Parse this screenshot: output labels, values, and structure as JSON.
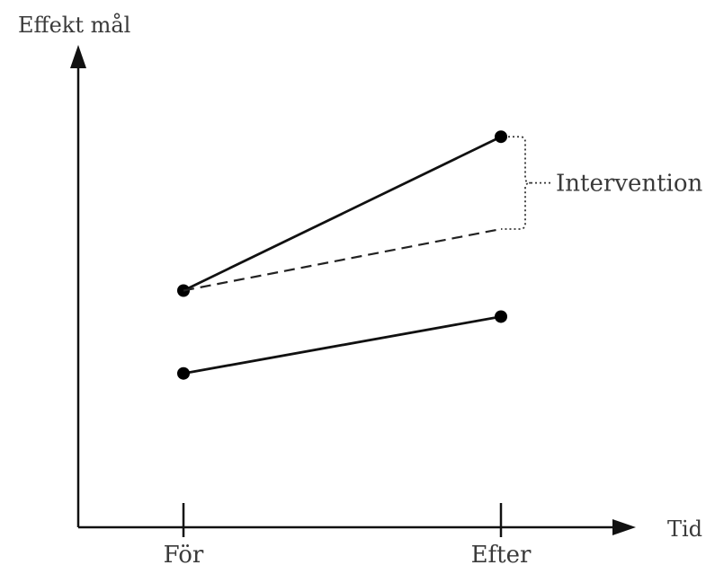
{
  "chart_data": {
    "type": "line",
    "title": "",
    "ylabel": "Effekt mål",
    "xlabel": "Tid",
    "categories": [
      "För",
      "Efter"
    ],
    "ylim": [
      0,
      10
    ],
    "grid": false,
    "series": [
      {
        "values": [
          5.0,
          8.25
        ],
        "style": "solid",
        "markers": true,
        "color": "#111111"
      },
      {
        "values": [
          5.0,
          6.3
        ],
        "style": "dashed",
        "markers": false,
        "color": "#222222"
      },
      {
        "values": [
          3.25,
          4.45
        ],
        "style": "solid",
        "markers": true,
        "color": "#111111"
      }
    ],
    "annotation": {
      "text": "Intervention",
      "category_index": 1,
      "from_value": 6.3,
      "to_value": 8.25
    }
  }
}
